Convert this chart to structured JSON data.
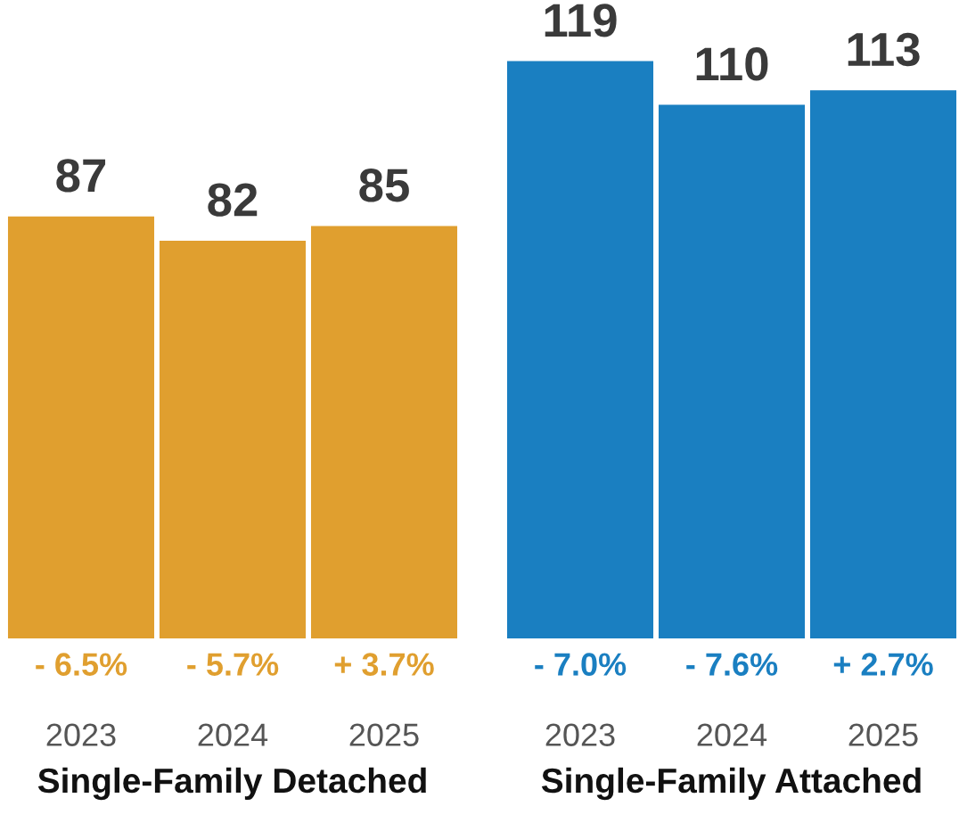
{
  "chart_data": [
    {
      "type": "bar",
      "categories": [
        "2023",
        "2024",
        "2025"
      ],
      "values": [
        87,
        82,
        85
      ],
      "color": "#e09f2f",
      "data_labels": true,
      "xlabel": "Single-Family Detached",
      "tick_labels": "x",
      "annotations": [
        "- 6.5%",
        "- 5.7%",
        "+ 3.7%"
      ]
    },
    {
      "type": "bar",
      "categories": [
        "2023",
        "2024",
        "2025"
      ],
      "values": [
        119,
        110,
        113
      ],
      "color": "#1a7fc1",
      "data_labels": true,
      "xlabel": "Single-Family Attached",
      "tick_labels": "x",
      "annotations": [
        "- 7.0%",
        "- 7.6%",
        "+ 2.7%"
      ]
    }
  ]
}
